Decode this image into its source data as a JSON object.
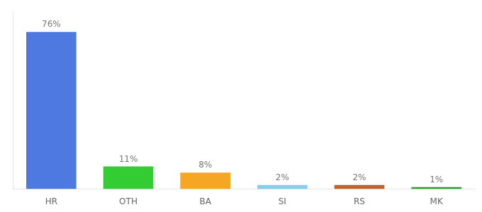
{
  "chart_data": {
    "type": "bar",
    "categories": [
      "HR",
      "OTH",
      "BA",
      "SI",
      "RS",
      "MK"
    ],
    "values": [
      76,
      11,
      8,
      2,
      2,
      1
    ],
    "value_labels": [
      "76%",
      "11%",
      "8%",
      "2%",
      "2%",
      "1%"
    ],
    "colors": [
      "#4d79e0",
      "#33cc33",
      "#f5a623",
      "#87ceeb",
      "#c0622a",
      "#2d9e2d"
    ],
    "ylim": [
      0,
      86
    ],
    "grid": false,
    "data_labels": true,
    "tick_labels": "x"
  }
}
